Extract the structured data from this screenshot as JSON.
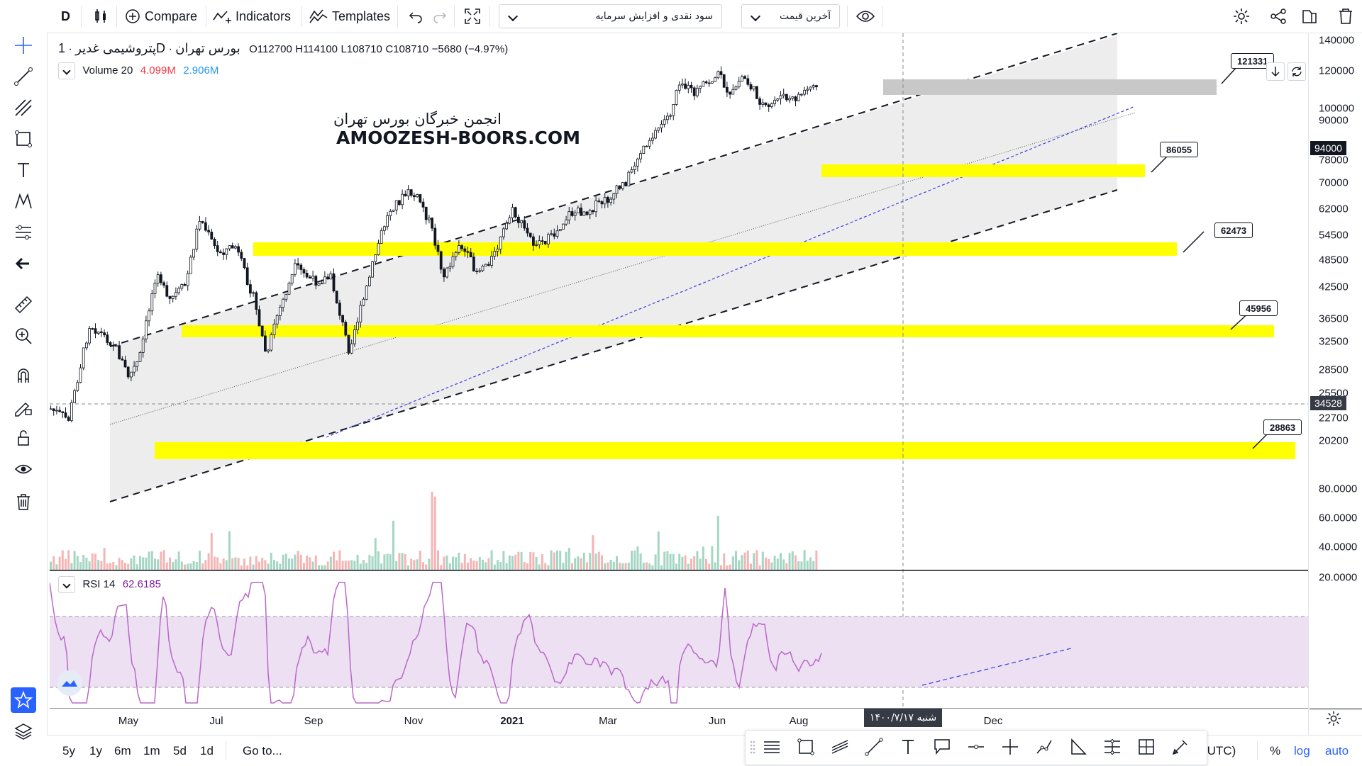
{
  "toolbar": {
    "symbol_short": "D",
    "compare": "Compare",
    "indicators": "Indicators",
    "templates": "Templates",
    "study_select": "سود نقدی و افزایش سرمایه",
    "price_select": "آخرین قیمت"
  },
  "legend": {
    "symbol_name": "پتروشیمی غدیر",
    "interval": "1D",
    "exchange": "بورس تهران",
    "open": "O112700",
    "high": "H114100",
    "low": "L108710",
    "close": "C108710",
    "change": "−5680 (−4.97%)",
    "volume_label": "Volume 20",
    "volume_val1": "4.099M",
    "volume_val2": "2.906M",
    "rsi_label": "RSI 14",
    "rsi_value": "62.6185"
  },
  "watermark": {
    "line1": "انجمن خبرگان بورس تهران",
    "line2": "AMOOZESH-BOORS.COM"
  },
  "price_axis": {
    "labels": [
      "140000",
      "120000",
      "100000",
      "90000",
      "78000",
      "70000",
      "62000",
      "54500",
      "48500",
      "42500",
      "36500",
      "32500",
      "28500",
      "25500",
      "22700",
      "20200"
    ],
    "current_price": "94000",
    "crosshair_price": "34528"
  },
  "rsi_axis": {
    "labels": [
      "80.0000",
      "60.0000",
      "40.0000",
      "20.0000"
    ]
  },
  "time_axis": {
    "labels": [
      "May",
      "Jul",
      "Sep",
      "Nov",
      "2021",
      "Mar",
      "Jun",
      "Aug",
      "Dec"
    ],
    "crosshair_date": "شنبه ۱۴۰۰/۷/۱۷"
  },
  "callouts": [
    "121331",
    "86055",
    "62473",
    "45956",
    "28863"
  ],
  "bottom_bar": {
    "ranges": [
      "5y",
      "1y",
      "6m",
      "1m",
      "5d",
      "1d"
    ],
    "goto": "Go to...",
    "timezone": "(UTC)",
    "percent": "%",
    "log": "log",
    "auto": "auto"
  },
  "colors": {
    "accent": "#2962ff",
    "highlight": "#ffff00",
    "rsi": "#ba68c8",
    "vol_up": "#a5d6c3",
    "vol_down": "#f5b5b5",
    "negative": "#f23645"
  },
  "left_tools": [
    "crosshair-icon",
    "trendline-icon",
    "pitchfork-icon",
    "rectangle-icon",
    "text-icon",
    "pattern-icon",
    "forecast-icon",
    "back-arrow-icon",
    "ruler-icon",
    "zoom-in-icon",
    "magnet-icon",
    "lock-drawing-icon",
    "unlock-icon",
    "eye-icon",
    "trash-icon",
    "star-icon",
    "layers-icon"
  ]
}
